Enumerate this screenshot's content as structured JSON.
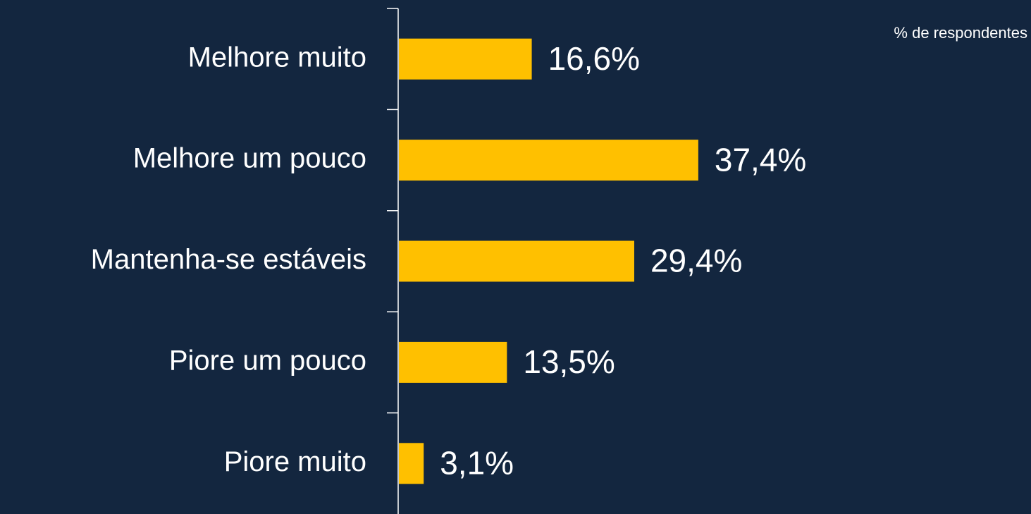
{
  "chart_data": {
    "type": "bar",
    "orientation": "horizontal",
    "annotation": "% de respondentes",
    "categories": [
      "Melhore muito",
      "Melhore um pouco",
      "Mantenha-se estáveis",
      "Piore um pouco",
      "Piore muito"
    ],
    "values": [
      16.6,
      37.4,
      29.4,
      13.5,
      3.1
    ],
    "value_labels": [
      "16,6%",
      "37,4%",
      "29,4%",
      "13,5%",
      "3,1%"
    ],
    "color": "#ffc000"
  }
}
